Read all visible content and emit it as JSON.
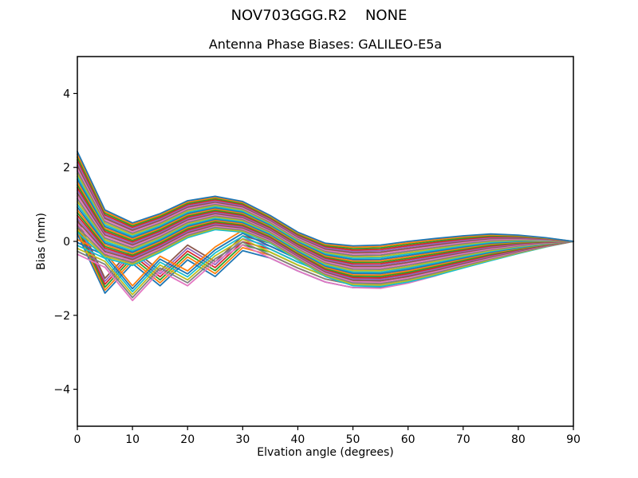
{
  "figure": {
    "suptitle": "NOV703GGG.R2    NONE",
    "background": "#ffffff",
    "spine_color": "#000000"
  },
  "chart_data": {
    "type": "line",
    "suptitle": "NOV703GGG.R2    NONE",
    "title": "Antenna Phase Biases: GALILEO-E5a",
    "xlabel": "Elvation angle (degrees)",
    "ylabel": "Bias (mm)",
    "xlim": [
      0,
      90
    ],
    "ylim": [
      -5,
      5
    ],
    "xticks": [
      0,
      10,
      20,
      30,
      40,
      50,
      60,
      70,
      80,
      90
    ],
    "yticks": [
      -4,
      -2,
      0,
      2,
      4
    ],
    "grid": false,
    "legend": "none",
    "n_series": 42,
    "x": [
      0,
      5,
      10,
      15,
      20,
      25,
      30,
      35,
      40,
      45,
      50,
      55,
      60,
      65,
      70,
      75,
      80,
      85,
      90
    ],
    "palette": [
      "#1f77b4",
      "#ff7f0e",
      "#2ca02c",
      "#d62728",
      "#9467bd",
      "#8c564b",
      "#e377c2",
      "#7f7f7f",
      "#bcbd22",
      "#17becf"
    ],
    "series_families": [
      {
        "name": "smooth-bundle",
        "count": 30,
        "mode": "lerp-between-envelopes",
        "upper": [
          2.43,
          0.85,
          0.5,
          0.75,
          1.1,
          1.22,
          1.08,
          0.7,
          0.25,
          -0.05,
          -0.12,
          -0.1,
          0.0,
          0.08,
          0.15,
          0.2,
          0.17,
          0.1,
          0.0
        ],
        "lower": [
          0.25,
          -0.45,
          -0.65,
          -0.3,
          0.1,
          0.32,
          0.25,
          -0.05,
          -0.5,
          -0.95,
          -1.2,
          -1.22,
          -1.1,
          -0.92,
          -0.72,
          -0.52,
          -0.33,
          -0.15,
          0.0
        ]
      },
      {
        "name": "zigzag-lower-lattice",
        "mode": "phase-offset",
        "phase_a": [
          0.3,
          -1.3,
          -0.5,
          -1.1,
          -0.4,
          -0.85,
          -0.15,
          -0.35,
          -0.7,
          -1.0,
          -1.15,
          -1.15,
          -1.0,
          -0.8,
          -0.6,
          -0.42,
          -0.25,
          -0.1,
          0.0
        ],
        "offsets_a": [
          -0.1,
          -0.02,
          0.06,
          0.14,
          0.22,
          0.3
        ],
        "phase_b": [
          -0.2,
          -0.55,
          -1.45,
          -0.65,
          -1.05,
          -0.4,
          0.05,
          -0.3,
          -0.65,
          -0.95,
          -1.1,
          -1.12,
          -0.98,
          -0.78,
          -0.58,
          -0.4,
          -0.24,
          -0.1,
          0.0
        ],
        "offsets_b": [
          -0.15,
          -0.07,
          0.01,
          0.09,
          0.17,
          0.25
        ],
        "taper": [
          1,
          1,
          1,
          1,
          1,
          1,
          1,
          1,
          1,
          1,
          1,
          1,
          1,
          1,
          0.8,
          0.6,
          0.4,
          0.2,
          0
        ]
      }
    ],
    "converge_point": {
      "x": 90,
      "y": 0
    }
  }
}
